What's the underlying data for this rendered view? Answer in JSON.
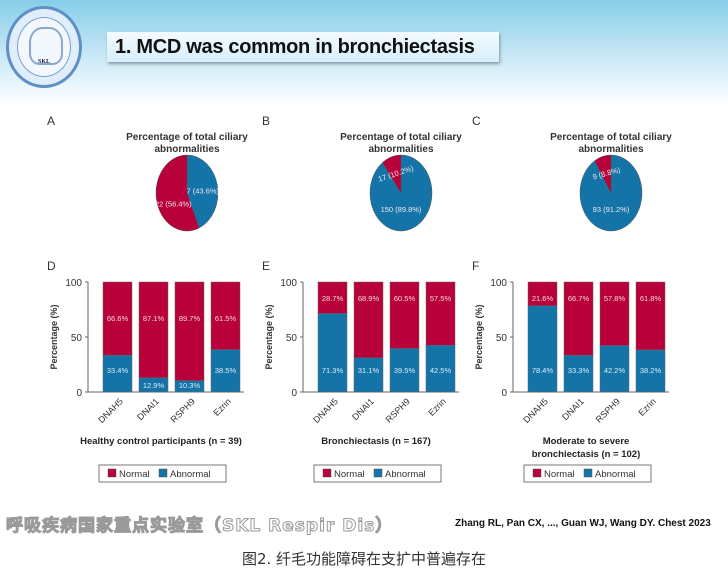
{
  "header": {
    "title": "1. MCD was common in bronchiectasis",
    "logo_text": "SKL Respir Dis"
  },
  "colors": {
    "normal": "#b8003a",
    "abnormal": "#1474a8"
  },
  "chart_data": [
    {
      "panel": "A",
      "type": "pie",
      "title": [
        "Percentage of total ciliary",
        "abnormalities"
      ],
      "slices": [
        {
          "name": "Abnormal",
          "value": 17,
          "label": "17 (43.6%)"
        },
        {
          "name": "Normal",
          "value": 22,
          "label": "22 (56.4%)"
        }
      ]
    },
    {
      "panel": "B",
      "type": "pie",
      "title": [
        "Percentage of total ciliary",
        "abnormalities"
      ],
      "slices": [
        {
          "name": "Abnormal",
          "value": 150,
          "label": "150 (89.8%)"
        },
        {
          "name": "Normal",
          "value": 17,
          "label": "17 (10.2%)"
        }
      ]
    },
    {
      "panel": "C",
      "type": "pie",
      "title": [
        "Percentage of total ciliary",
        "abnormalities"
      ],
      "slices": [
        {
          "name": "Abnormal",
          "value": 93,
          "label": "93 (91.2%)"
        },
        {
          "name": "Normal",
          "value": 9,
          "label": "9 (8.8%)"
        }
      ]
    },
    {
      "panel": "D",
      "type": "bar",
      "stacked": true,
      "ylabel": "Percentage (%)",
      "ylim": [
        0,
        100
      ],
      "yticks": [
        "0",
        "50",
        "100"
      ],
      "categories": [
        "DNAH5",
        "DNAI1",
        "RSPH9",
        "Ezrin"
      ],
      "series": [
        {
          "name": "Abnormal",
          "values": [
            33.4,
            12.9,
            10.3,
            38.5
          ]
        },
        {
          "name": "Normal",
          "values": [
            66.6,
            87.1,
            89.7,
            61.5
          ]
        }
      ],
      "xlabel": [
        "Healthy control participants (n = 39)"
      ],
      "legend": [
        "Normal",
        "Abnormal"
      ]
    },
    {
      "panel": "E",
      "type": "bar",
      "stacked": true,
      "ylabel": "Percentage (%)",
      "ylim": [
        0,
        100
      ],
      "yticks": [
        "0",
        "50",
        "100"
      ],
      "categories": [
        "DNAH5",
        "DNAI1",
        "RSPH9",
        "Ezrin"
      ],
      "series": [
        {
          "name": "Abnormal",
          "values": [
            71.3,
            31.1,
            39.5,
            42.5
          ]
        },
        {
          "name": "Normal",
          "values": [
            28.7,
            68.9,
            60.5,
            57.5
          ]
        }
      ],
      "xlabel": [
        "Bronchiectasis (n = 167)"
      ],
      "legend": [
        "Normal",
        "Abnormal"
      ]
    },
    {
      "panel": "F",
      "type": "bar",
      "stacked": true,
      "ylabel": "Percentage (%)",
      "ylim": [
        0,
        100
      ],
      "yticks": [
        "0",
        "50",
        "100"
      ],
      "categories": [
        "DNAH5",
        "DNAI1",
        "RSPH9",
        "Ezrin"
      ],
      "series": [
        {
          "name": "Abnormal",
          "values": [
            78.4,
            33.3,
            42.2,
            38.2
          ]
        },
        {
          "name": "Normal",
          "values": [
            21.6,
            66.7,
            57.8,
            61.8
          ]
        }
      ],
      "xlabel": [
        "Moderate to severe",
        "bronchiectasis (n = 102)"
      ],
      "legend": [
        "Normal",
        "Abnormal"
      ]
    }
  ],
  "footer": {
    "watermark": "呼吸疾病国家重点实验室（SKL Respir Dis）",
    "citation": "Zhang RL, Pan CX, ..., Guan WJ, Wang DY. Chest 2023",
    "caption": "图2. 纤毛功能障碍在支扩中普遍存在"
  }
}
